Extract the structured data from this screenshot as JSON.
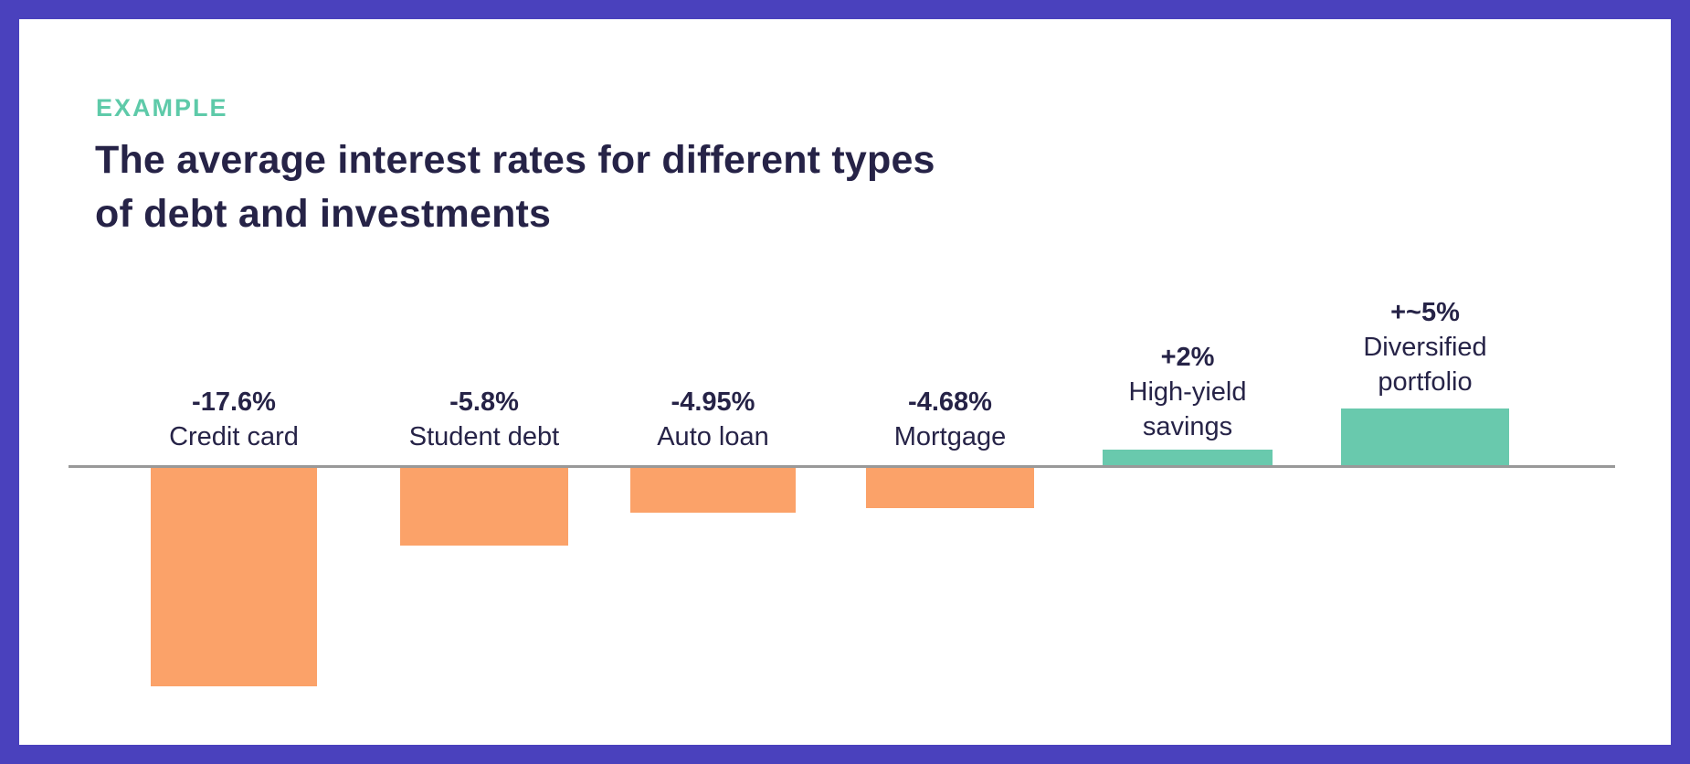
{
  "frame": {
    "border_color": "#4a41bd",
    "background_color": "#ffffff"
  },
  "header": {
    "eyebrow": "EXAMPLE",
    "eyebrow_color": "#5ecaa9",
    "title_lines": [
      "The average interest rates for different types",
      "of debt and investments"
    ],
    "title_color": "#262347"
  },
  "chart_data": {
    "type": "bar",
    "orientation": "vertical",
    "title": "The average interest rates for different types of debt and investments",
    "categories": [
      "Credit card",
      "Student debt",
      "Auto loan",
      "Mortgage",
      "High-yield savings",
      "Diversified portfolio"
    ],
    "values": [
      -17.6,
      -5.8,
      -4.95,
      -4.68,
      2.0,
      5.0
    ],
    "value_labels": [
      "-17.6%",
      "-5.8%",
      "-4.95%",
      "-4.68%",
      "+2%",
      "+~5%"
    ],
    "bar_colors": [
      "#fba269",
      "#fba269",
      "#fba269",
      "#fba269",
      "#69c9ad",
      "#69c9ad"
    ],
    "negative_color": "#fba269",
    "positive_color": "#69c9ad",
    "axis_color": "#999999",
    "baseline": 0,
    "legend": "none",
    "gridlines": false,
    "value_axis_labels_visible": false
  }
}
